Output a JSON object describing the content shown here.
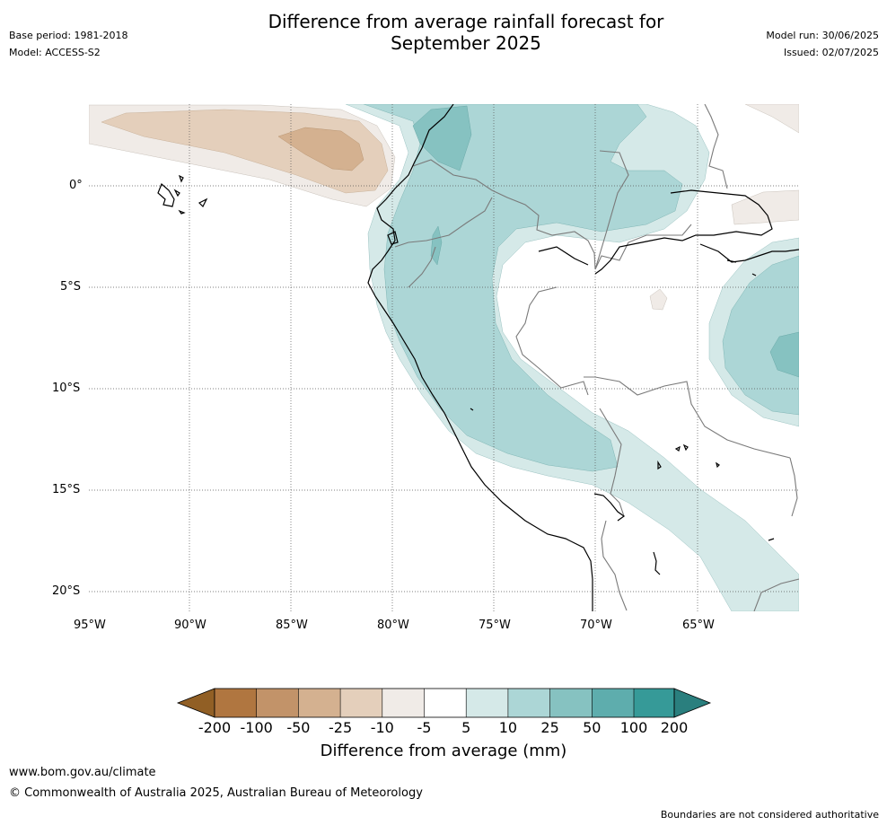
{
  "header": {
    "base_period": "Base period: 1981-2018",
    "model": "Model: ACCESS-S2",
    "title_line1": "Difference from average rainfall forecast for",
    "title_line2": "September 2025",
    "model_run": "Model run: 30/06/2025",
    "issued": "Issued: 02/07/2025"
  },
  "map": {
    "lat_labels": [
      "0°",
      "5°S",
      "10°S",
      "15°S",
      "20°S"
    ],
    "lon_labels": [
      "95°W",
      "90°W",
      "85°W",
      "80°W",
      "75°W",
      "70°W",
      "65°W"
    ]
  },
  "colorbar": {
    "ticks": [
      "-200",
      "-100",
      "-50",
      "-25",
      "-10",
      "-5",
      "5",
      "10",
      "25",
      "50",
      "100",
      "200"
    ],
    "colors": [
      "#915f25",
      "#b07640",
      "#c29369",
      "#d4b190",
      "#e4cfbb",
      "#f0ebe7",
      "#ffffff",
      "#d5e9e8",
      "#acd6d6",
      "#86c2c1",
      "#5eadad",
      "#369a98",
      "#2a7f7e"
    ],
    "label": "Difference from average (mm)"
  },
  "footer": {
    "url": "www.bom.gov.au/climate",
    "copyright": "© Commonwealth of Australia 2025, Australian Bureau of Meteorology",
    "disclaimer": "Boundaries are not considered authoritative"
  }
}
